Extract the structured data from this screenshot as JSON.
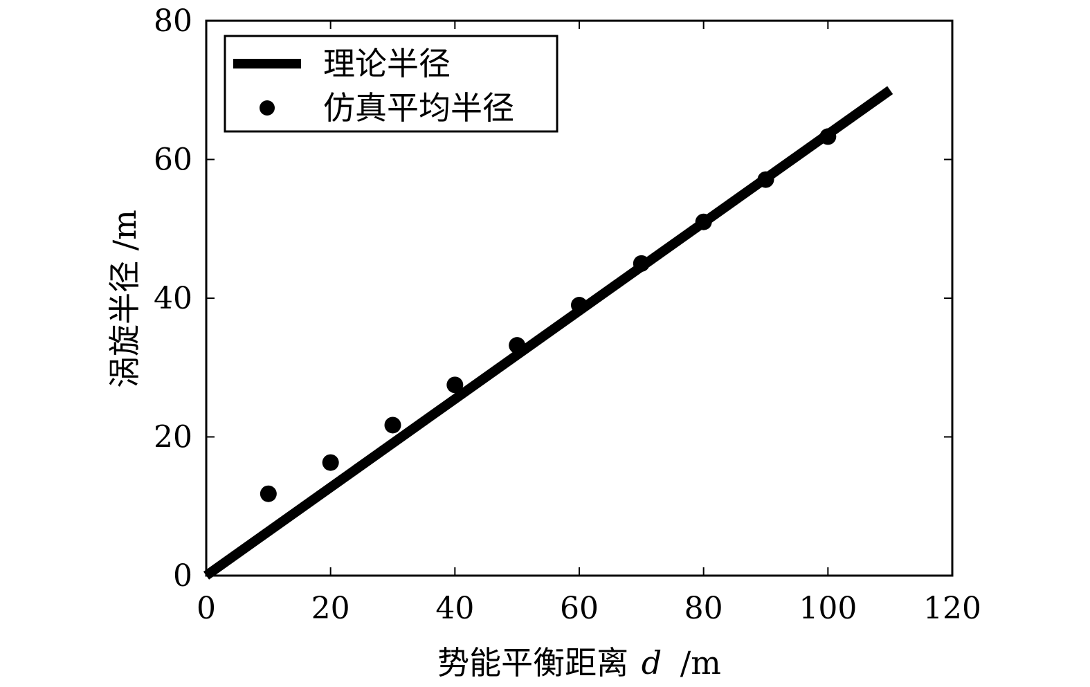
{
  "chart_data": {
    "type": "line",
    "title": "",
    "xlabel": "势能平衡距离",
    "xlabel_var": "d",
    "xlabel_unit": "/m",
    "ylabel": "涡旋半径 /m",
    "xlim": [
      0,
      120
    ],
    "ylim": [
      0,
      80
    ],
    "xticks": [
      "0",
      "20",
      "40",
      "60",
      "80",
      "100",
      "120"
    ],
    "yticks": [
      "0",
      "20",
      "40",
      "60",
      "80"
    ],
    "grid": false,
    "legend_position": "top-left",
    "colors": {
      "line": "#000000",
      "markers": "#000000",
      "axes": "#000000",
      "background": "#ffffff"
    },
    "series": [
      {
        "name": "理论半径",
        "style": "line",
        "x": [
          0,
          110
        ],
        "y": [
          0,
          70
        ]
      },
      {
        "name": "仿真平均半径",
        "style": "markers",
        "x": [
          10,
          20,
          30,
          40,
          50,
          60,
          70,
          80,
          90,
          100
        ],
        "y": [
          11.8,
          16.3,
          21.7,
          27.5,
          33.2,
          39.0,
          45.0,
          51.0,
          57.1,
          63.3
        ]
      }
    ]
  }
}
